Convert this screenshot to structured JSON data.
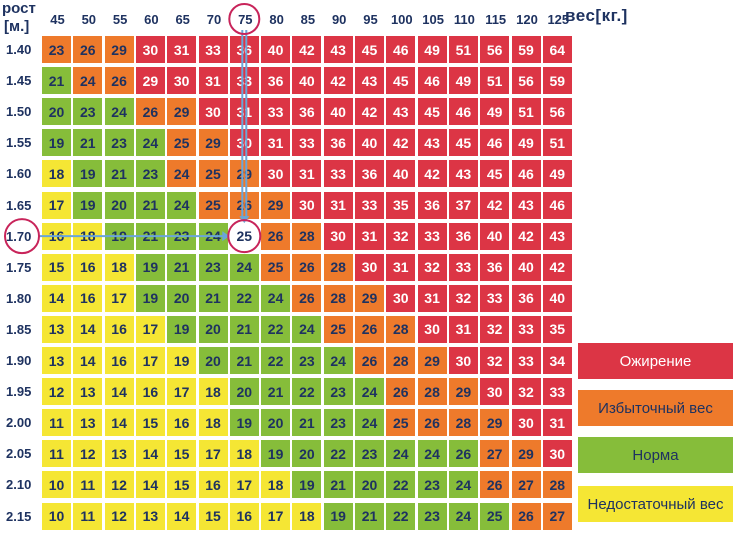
{
  "chart_data": {
    "type": "heatmap",
    "corner_label_top": "рост",
    "corner_label_bottom": "[м.]",
    "x_unit_label": "вес[кг.]",
    "weights": [
      "45",
      "50",
      "55",
      "60",
      "65",
      "70",
      "75",
      "80",
      "85",
      "90",
      "95",
      "100",
      "105",
      "110",
      "115",
      "120",
      "125"
    ],
    "heights": [
      "1.40",
      "1.45",
      "1.50",
      "1.55",
      "1.60",
      "1.65",
      "1.70",
      "1.75",
      "1.80",
      "1.85",
      "1.90",
      "1.95",
      "2.00",
      "2.05",
      "2.10",
      "2.15"
    ],
    "values": [
      [
        23,
        26,
        29,
        30,
        31,
        33,
        36,
        40,
        42,
        43,
        45,
        46,
        49,
        51,
        56,
        59,
        64
      ],
      [
        21,
        24,
        26,
        29,
        30,
        31,
        33,
        36,
        40,
        42,
        43,
        45,
        46,
        49,
        51,
        56,
        59
      ],
      [
        20,
        23,
        24,
        26,
        29,
        30,
        31,
        33,
        36,
        40,
        42,
        43,
        45,
        46,
        49,
        51,
        56
      ],
      [
        19,
        21,
        23,
        24,
        25,
        29,
        30,
        31,
        33,
        36,
        40,
        42,
        43,
        45,
        46,
        49,
        51
      ],
      [
        18,
        19,
        21,
        23,
        24,
        25,
        29,
        30,
        31,
        33,
        36,
        40,
        42,
        43,
        45,
        46,
        49
      ],
      [
        17,
        19,
        20,
        21,
        24,
        25,
        26,
        29,
        30,
        31,
        33,
        35,
        36,
        37,
        42,
        43,
        46
      ],
      [
        16,
        18,
        19,
        21,
        23,
        24,
        25,
        26,
        28,
        30,
        31,
        32,
        33,
        36,
        40,
        42,
        43
      ],
      [
        15,
        16,
        18,
        19,
        21,
        23,
        24,
        25,
        26,
        28,
        30,
        31,
        32,
        33,
        36,
        40,
        42
      ],
      [
        14,
        16,
        17,
        19,
        20,
        21,
        22,
        24,
        26,
        28,
        29,
        30,
        31,
        32,
        33,
        36,
        40
      ],
      [
        13,
        14,
        16,
        17,
        19,
        20,
        21,
        22,
        24,
        25,
        26,
        28,
        30,
        31,
        32,
        33,
        35
      ],
      [
        13,
        14,
        16,
        17,
        19,
        20,
        21,
        22,
        23,
        24,
        26,
        28,
        29,
        30,
        32,
        33,
        34
      ],
      [
        12,
        13,
        14,
        16,
        17,
        18,
        20,
        21,
        22,
        23,
        24,
        26,
        28,
        29,
        30,
        32,
        33
      ],
      [
        11,
        13,
        14,
        15,
        16,
        18,
        19,
        20,
        21,
        23,
        24,
        25,
        26,
        28,
        29,
        30,
        31
      ],
      [
        11,
        12,
        13,
        14,
        15,
        17,
        18,
        19,
        20,
        22,
        23,
        24,
        24,
        26,
        27,
        29,
        30
      ],
      [
        10,
        11,
        12,
        14,
        15,
        16,
        17,
        18,
        19,
        21,
        20,
        22,
        23,
        24,
        26,
        27,
        28
      ],
      [
        10,
        11,
        12,
        13,
        14,
        15,
        16,
        17,
        18,
        19,
        21,
        22,
        23,
        24,
        25,
        26,
        27
      ]
    ],
    "categories": [
      [
        2,
        2,
        2,
        1,
        1,
        1,
        1,
        1,
        1,
        1,
        1,
        1,
        1,
        1,
        1,
        1,
        1
      ],
      [
        3,
        2,
        2,
        1,
        1,
        1,
        1,
        1,
        1,
        1,
        1,
        1,
        1,
        1,
        1,
        1,
        1
      ],
      [
        3,
        3,
        3,
        2,
        2,
        1,
        1,
        1,
        1,
        1,
        1,
        1,
        1,
        1,
        1,
        1,
        1
      ],
      [
        3,
        3,
        3,
        3,
        2,
        2,
        1,
        1,
        1,
        1,
        1,
        1,
        1,
        1,
        1,
        1,
        1
      ],
      [
        4,
        3,
        3,
        3,
        2,
        2,
        2,
        1,
        1,
        1,
        1,
        1,
        1,
        1,
        1,
        1,
        1
      ],
      [
        4,
        3,
        3,
        3,
        3,
        2,
        2,
        2,
        1,
        1,
        1,
        1,
        1,
        1,
        1,
        1,
        1
      ],
      [
        4,
        4,
        3,
        3,
        3,
        3,
        3,
        2,
        2,
        1,
        1,
        1,
        1,
        1,
        1,
        1,
        1
      ],
      [
        4,
        4,
        4,
        3,
        3,
        3,
        3,
        2,
        2,
        2,
        1,
        1,
        1,
        1,
        1,
        1,
        1
      ],
      [
        4,
        4,
        4,
        3,
        3,
        3,
        3,
        3,
        2,
        2,
        2,
        1,
        1,
        1,
        1,
        1,
        1
      ],
      [
        4,
        4,
        4,
        4,
        3,
        3,
        3,
        3,
        3,
        2,
        2,
        2,
        1,
        1,
        1,
        1,
        1
      ],
      [
        4,
        4,
        4,
        4,
        4,
        3,
        3,
        3,
        3,
        3,
        2,
        2,
        2,
        1,
        1,
        1,
        1
      ],
      [
        4,
        4,
        4,
        4,
        4,
        4,
        3,
        3,
        3,
        3,
        3,
        2,
        2,
        2,
        1,
        1,
        1
      ],
      [
        4,
        4,
        4,
        4,
        4,
        4,
        3,
        3,
        3,
        3,
        3,
        2,
        2,
        2,
        2,
        1,
        1
      ],
      [
        4,
        4,
        4,
        4,
        4,
        4,
        4,
        3,
        3,
        3,
        3,
        3,
        3,
        3,
        2,
        2,
        1
      ],
      [
        4,
        4,
        4,
        4,
        4,
        4,
        4,
        4,
        3,
        3,
        3,
        3,
        3,
        3,
        2,
        2,
        2
      ],
      [
        4,
        4,
        4,
        4,
        4,
        4,
        4,
        4,
        4,
        3,
        3,
        3,
        3,
        3,
        3,
        2,
        2
      ]
    ],
    "category_colors": {
      "1": "#dc3545",
      "2": "#ee7a2b",
      "3": "#86bd3a",
      "4": "#f5e634"
    },
    "legend": [
      {
        "label": "Ожирение",
        "color": "#dc3545"
      },
      {
        "label": "Избыточный вес",
        "color": "#ee7a2b"
      },
      {
        "label": "Норма",
        "color": "#86bd3a"
      },
      {
        "label": "Недостаточный вес",
        "color": "#f5e634"
      }
    ],
    "highlight": {
      "weight": "75",
      "height": "1.70",
      "value": 25
    },
    "legend_placement": "right"
  }
}
